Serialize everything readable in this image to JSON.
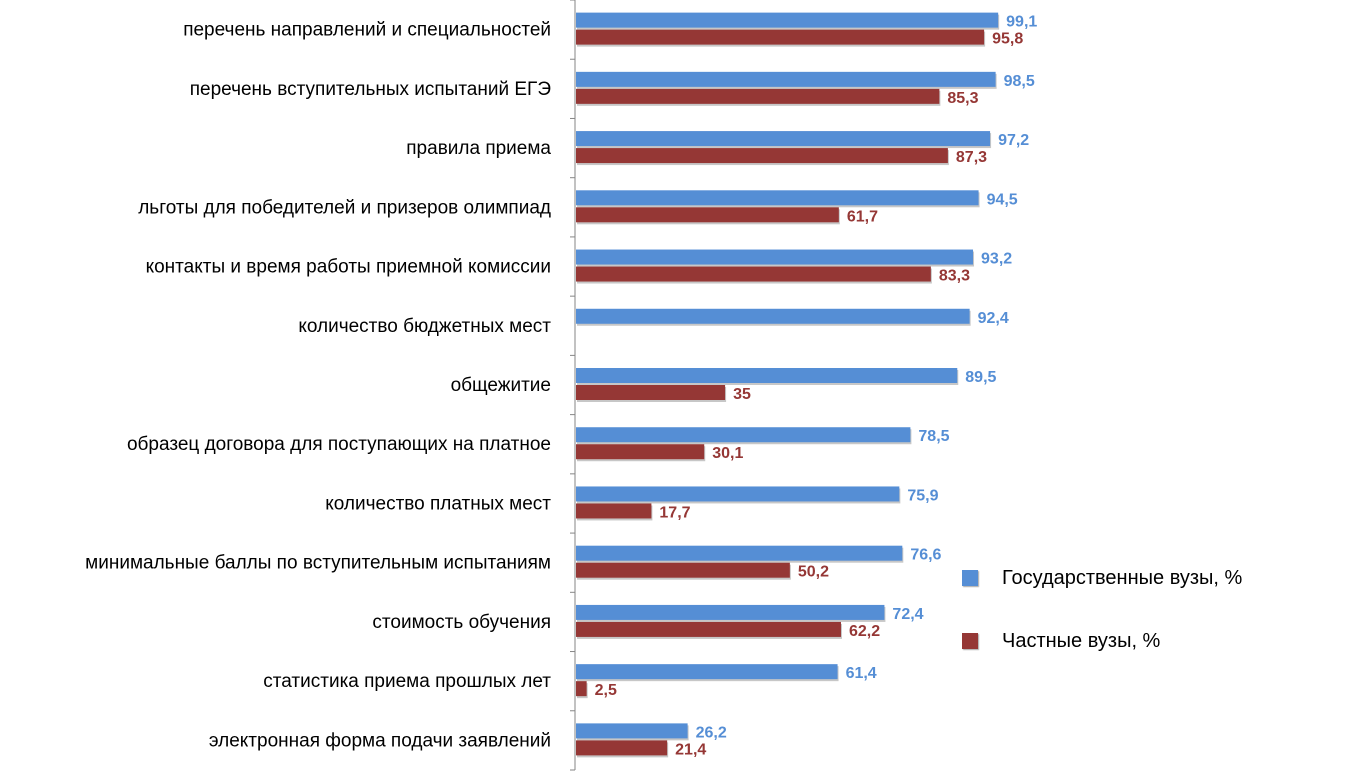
{
  "chart_data": {
    "type": "bar",
    "orientation": "horizontal",
    "categories": [
      "перечень направлений  и специальностей",
      "перечень вступительных  испытаний  ЕГЭ",
      "правила приема",
      "льготы для победителей  и призеров  олимпиад",
      "контакты и время работы приемной  комиссии",
      "количество бюджетных мест",
      "общежитие",
      "образец договора для поступающих  на платное",
      "количество платных мест",
      "минимальные баллы по вступительным  испытаниям",
      "стоимость обучения",
      "статистика приема  прошлых лет",
      "электронная форма  подачи заявлений"
    ],
    "series": [
      {
        "name": "Государственные вузы, %",
        "color": "#558ED5",
        "values": [
          99.1,
          98.5,
          97.2,
          94.5,
          93.2,
          92.4,
          89.5,
          78.5,
          75.9,
          76.6,
          72.4,
          61.4,
          26.2
        ],
        "labels": [
          "99,1",
          "98,5",
          "97,2",
          "94,5",
          "93,2",
          "92,4",
          "89,5",
          "78,5",
          "75,9",
          "76,6",
          "72,4",
          "61,4",
          "26,2"
        ]
      },
      {
        "name": "Частные вузы, %",
        "color": "#953735",
        "values": [
          95.8,
          85.3,
          87.3,
          61.7,
          83.3,
          null,
          35,
          30.1,
          17.7,
          50.2,
          62.2,
          2.5,
          21.4
        ],
        "labels": [
          "95,8",
          "85,3",
          "87,3",
          "61,7",
          "83,3",
          "",
          "35",
          "30,1",
          "17,7",
          "50,2",
          "62,2",
          "2,5",
          "21,4"
        ]
      }
    ],
    "xlim": [
      0,
      100
    ],
    "grid": false,
    "legend_position": "right"
  }
}
